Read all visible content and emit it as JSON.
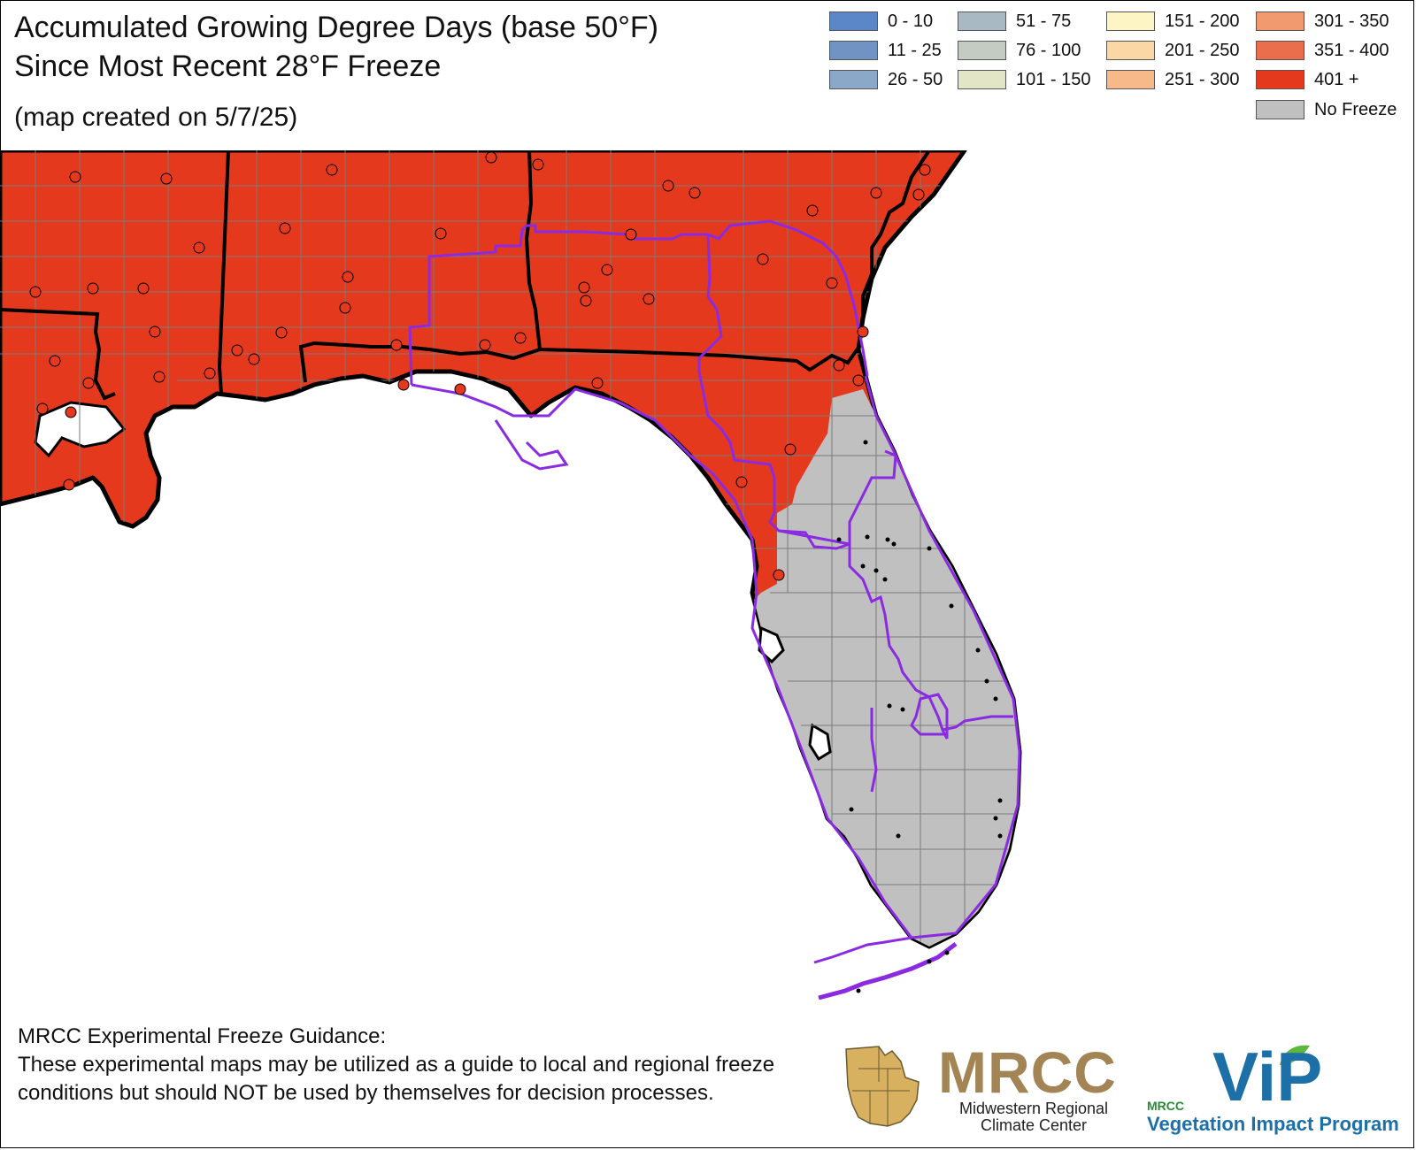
{
  "title": {
    "line1": "Accumulated Growing Degree Days (base 50°F)",
    "line2": "Since Most Recent 28°F Freeze",
    "line3": "(map created on 5/7/25)"
  },
  "legend": {
    "items": [
      {
        "label": "0 - 10",
        "color": "#5b86c8"
      },
      {
        "label": "11 - 25",
        "color": "#7093c3"
      },
      {
        "label": "26 - 50",
        "color": "#8ba8c9"
      },
      {
        "label": "51 - 75",
        "color": "#a9b9c4"
      },
      {
        "label": "76 - 100",
        "color": "#c4cbc3"
      },
      {
        "label": "101 - 150",
        "color": "#e3e6c6"
      },
      {
        "label": "151 - 200",
        "color": "#fdf5c4"
      },
      {
        "label": "201 - 250",
        "color": "#fbd7a6"
      },
      {
        "label": "251 - 300",
        "color": "#f7b88a"
      },
      {
        "label": "301 - 350",
        "color": "#f19a70"
      },
      {
        "label": "351 - 400",
        "color": "#eb6e4c"
      },
      {
        "label": "401 +",
        "color": "#e5391e"
      },
      {
        "label": "No Freeze",
        "color": "#c0c0c0"
      }
    ]
  },
  "map": {
    "colors": {
      "gdd_401_plus": "#e5391e",
      "no_freeze": "#c0c0c0",
      "water": "#ffffff",
      "state_border": "#000000",
      "county_border": "#6e6e6e",
      "climate_division_border": "#8a2be2"
    }
  },
  "footer": {
    "heading": "MRCC Experimental Freeze Guidance:",
    "body": "These experimental maps may be utilized as a guide to local and regional freeze conditions but should NOT be used by themselves for decision processes."
  },
  "logos": {
    "mrcc_word": "MRCC",
    "mrcc_sub1": "Midwestern Regional",
    "mrcc_sub2": "Climate Center",
    "vip_small": "MRCC",
    "vip_word": "ViP",
    "vip_sub": "Vegetation Impact Program"
  }
}
